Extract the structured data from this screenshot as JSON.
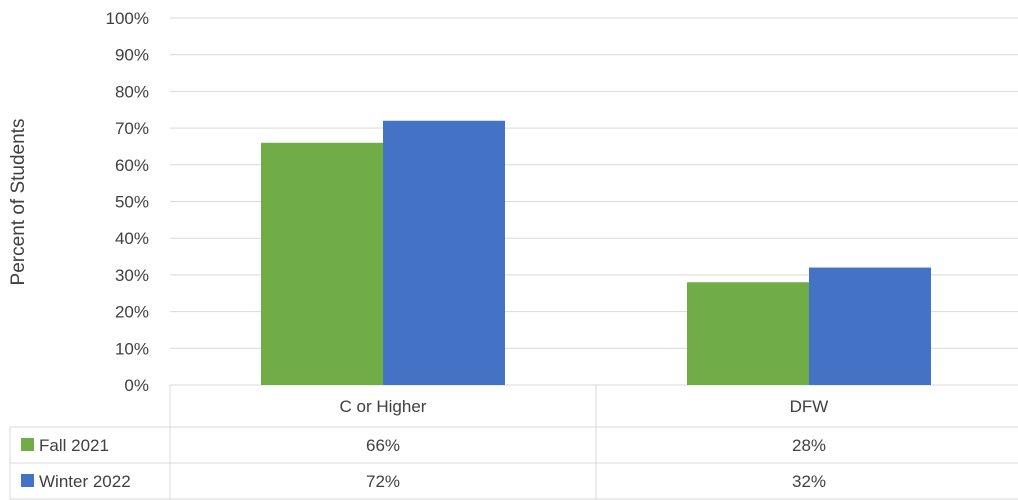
{
  "chart_data": {
    "type": "bar",
    "categories": [
      "C or Higher",
      "DFW"
    ],
    "series": [
      {
        "name": "Fall 2021",
        "values": [
          66,
          28
        ],
        "labels": [
          "66%",
          "28%"
        ],
        "color": "#70AD47"
      },
      {
        "name": "Winter 2022",
        "values": [
          72,
          32
        ],
        "labels": [
          "72%",
          "32%"
        ],
        "color": "#4472C4"
      }
    ],
    "ylabel": "Percent of Students",
    "ylim": [
      0,
      100
    ],
    "yticks": [
      "0%",
      "10%",
      "20%",
      "30%",
      "40%",
      "50%",
      "60%",
      "70%",
      "80%",
      "90%",
      "100%"
    ],
    "grid": true,
    "legend": "data-table"
  }
}
